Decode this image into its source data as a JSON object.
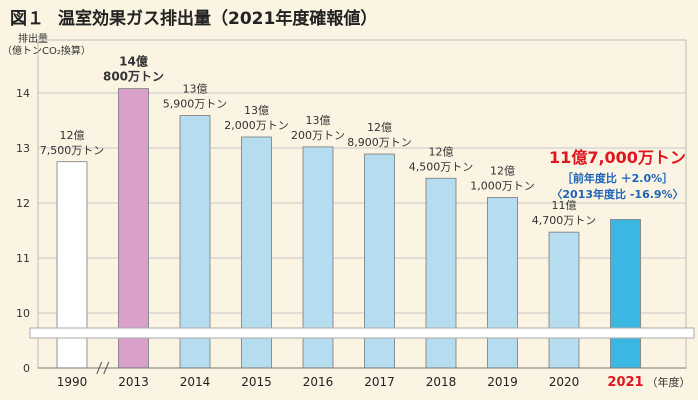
{
  "chart_data": {
    "type": "bar",
    "title_prefix": "図１",
    "title": "温室効果ガス排出量（2021年度確報値）",
    "ylabel_line1": "排出量",
    "ylabel_line2": "（億トンCO₂換算）",
    "x_unit": "（年度）",
    "yticks": [
      0,
      10,
      11,
      12,
      13,
      14
    ],
    "ylim": [
      9.5,
      14.3
    ],
    "axis_break": true,
    "categories": [
      "1990",
      "2013",
      "2014",
      "2015",
      "2016",
      "2017",
      "2018",
      "2019",
      "2020",
      "2021"
    ],
    "values": [
      12.75,
      14.08,
      13.59,
      13.2,
      13.02,
      12.89,
      12.45,
      12.1,
      11.47,
      11.7
    ],
    "bar_colors": [
      "#ffffff",
      "#d9a0c9",
      "#b5ddef",
      "#b5ddef",
      "#b5ddef",
      "#b5ddef",
      "#b5ddef",
      "#b5ddef",
      "#b5ddef",
      "#3ab7e3"
    ],
    "data_labels": [
      [
        "12億",
        "7,500万トン"
      ],
      [
        "14億",
        "800万トン"
      ],
      [
        "13億",
        "5,900万トン"
      ],
      [
        "13億",
        "2,000万トン"
      ],
      [
        "13億",
        "200万トン"
      ],
      [
        "12億",
        "8,900万トン"
      ],
      [
        "12億",
        "4,500万トン"
      ],
      [
        "12億",
        "1,000万トン"
      ],
      [
        "11億",
        "4,700万トン"
      ]
    ],
    "highlight": {
      "value_text": "11億7,000万トン",
      "line1": "［前年度比 ＋2.0%］",
      "line2": "〈2013年度比 -16.9%〉",
      "color": "#e0161f",
      "sub_color": "#1f63b8"
    }
  }
}
